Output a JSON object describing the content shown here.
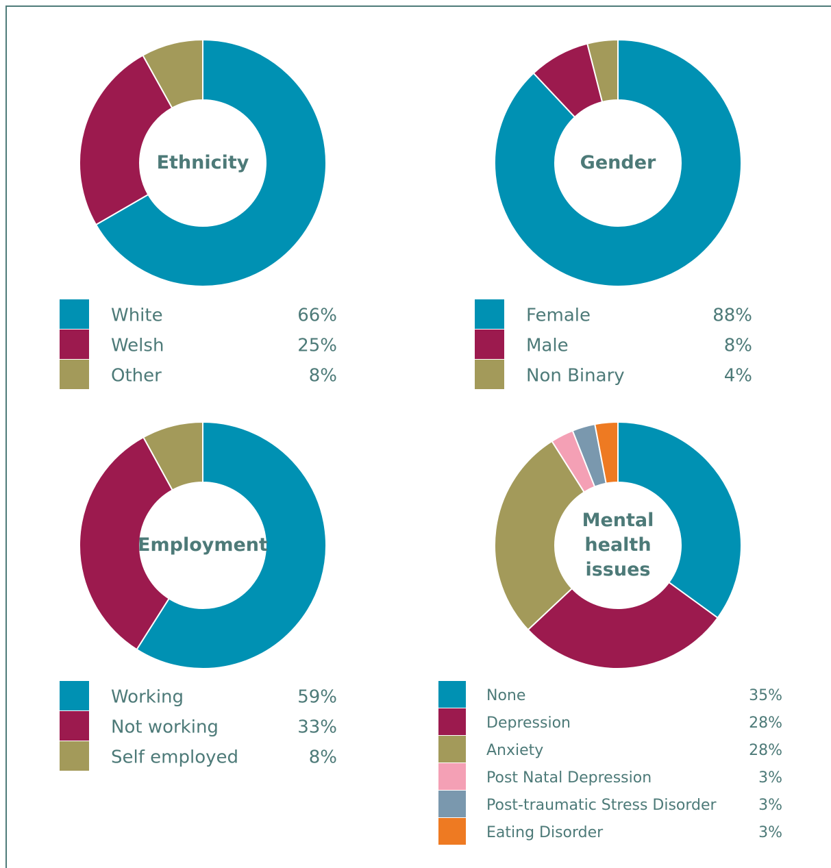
{
  "chart_data": [
    {
      "type": "pie",
      "title": "Ethnicity",
      "categories": [
        "White",
        "Welsh",
        "Other"
      ],
      "values": [
        66,
        25,
        8
      ],
      "value_labels": [
        "66%",
        "25%",
        "8%"
      ],
      "colors": [
        "#0091b3",
        "#9c1a4e",
        "#a39a5a"
      ]
    },
    {
      "type": "pie",
      "title": "Gender",
      "categories": [
        "Female",
        "Male",
        "Non Binary"
      ],
      "values": [
        88,
        8,
        4
      ],
      "value_labels": [
        "88%",
        "8%",
        "4%"
      ],
      "colors": [
        "#0091b3",
        "#9c1a4e",
        "#a39a5a"
      ]
    },
    {
      "type": "pie",
      "title": "Employment",
      "categories": [
        "Working",
        "Not working",
        "Self employed"
      ],
      "values": [
        59,
        33,
        8
      ],
      "value_labels": [
        "59%",
        "33%",
        "8%"
      ],
      "colors": [
        "#0091b3",
        "#9c1a4e",
        "#a39a5a"
      ]
    },
    {
      "type": "pie",
      "title": "Mental health issues",
      "categories": [
        "None",
        "Depression",
        "Anxiety",
        "Post Natal Depression",
        "Post-traumatic Stress Disorder",
        "Eating Disorder"
      ],
      "values": [
        35,
        28,
        28,
        3,
        3,
        3
      ],
      "value_labels": [
        "35%",
        "28%",
        "28%",
        "3%",
        "3%",
        "3%"
      ],
      "colors": [
        "#0091b3",
        "#9c1a4e",
        "#a39a5a",
        "#f4a0b5",
        "#7a98ae",
        "#ee7a22"
      ]
    }
  ]
}
